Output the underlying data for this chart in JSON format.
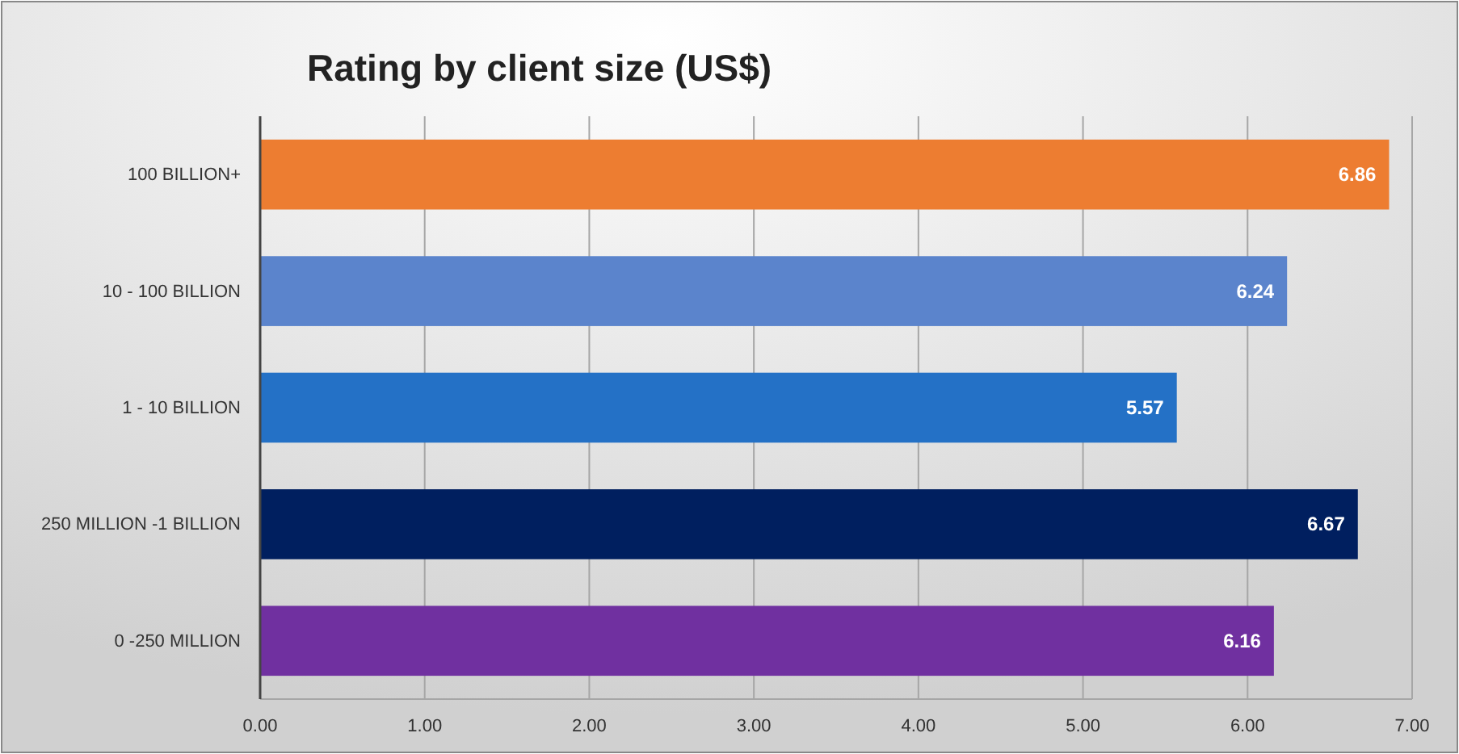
{
  "chart_data": {
    "type": "bar",
    "orientation": "horizontal",
    "title": "Rating by client size (US$)",
    "categories": [
      "100 BILLION+",
      "10 - 100 BILLION",
      "1 - 10 BILLION",
      "250 MILLION -1 BILLION",
      "0 -250 MILLION"
    ],
    "values": [
      6.86,
      6.24,
      5.57,
      6.67,
      6.16
    ],
    "colors": [
      "#ed7d31",
      "#5b84cc",
      "#2471c6",
      "#001f5f",
      "#7030a0"
    ],
    "xlim": [
      0,
      7
    ],
    "xticks": [
      {
        "value": 0,
        "label": "0.00"
      },
      {
        "value": 1,
        "label": "1.00"
      },
      {
        "value": 2,
        "label": "2.00"
      },
      {
        "value": 3,
        "label": "3.00"
      },
      {
        "value": 4,
        "label": "4.00"
      },
      {
        "value": 5,
        "label": "5.00"
      },
      {
        "value": 6,
        "label": "6.00"
      },
      {
        "value": 7,
        "label": "7.00"
      }
    ],
    "grid": "x",
    "data_labels": true
  }
}
